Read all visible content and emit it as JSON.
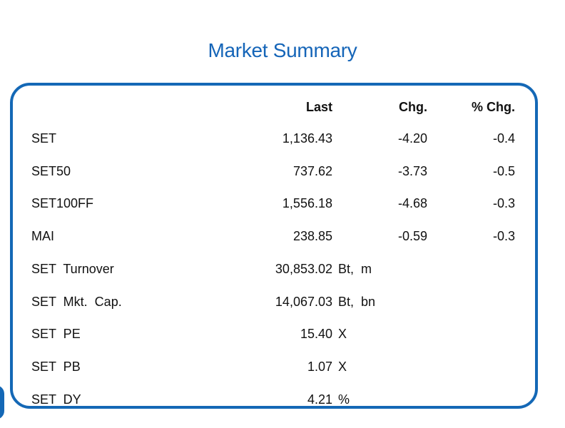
{
  "title": "Market Summary",
  "headers": {
    "last": "Last",
    "chg": "Chg.",
    "pct": "% Chg."
  },
  "rows": [
    {
      "label": "SET",
      "last": "1,136.43",
      "chg": "-4.20",
      "pct": "-0.4",
      "unit": ""
    },
    {
      "label": "SET50",
      "last": "737.62",
      "chg": "-3.73",
      "pct": "-0.5",
      "unit": ""
    },
    {
      "label": "SET100FF",
      "last": "1,556.18",
      "chg": "-4.68",
      "pct": "-0.3",
      "unit": ""
    },
    {
      "label": "MAI",
      "last": "238.85",
      "chg": "-0.59",
      "pct": "-0.3",
      "unit": ""
    },
    {
      "label": "SET  Turnover",
      "last": "30,853.02",
      "chg": "",
      "pct": "",
      "unit": "Bt,  m"
    },
    {
      "label": "SET  Mkt.  Cap.",
      "last": "14,067.03",
      "chg": "",
      "pct": "",
      "unit": "Bt,  bn"
    },
    {
      "label": "SET  PE",
      "last": "15.40",
      "chg": "",
      "pct": "",
      "unit": "X"
    },
    {
      "label": "SET  PB",
      "last": "1.07",
      "chg": "",
      "pct": "",
      "unit": "X"
    },
    {
      "label": "SET  DY",
      "last": "4.21",
      "chg": "",
      "pct": "",
      "unit": "%"
    }
  ]
}
